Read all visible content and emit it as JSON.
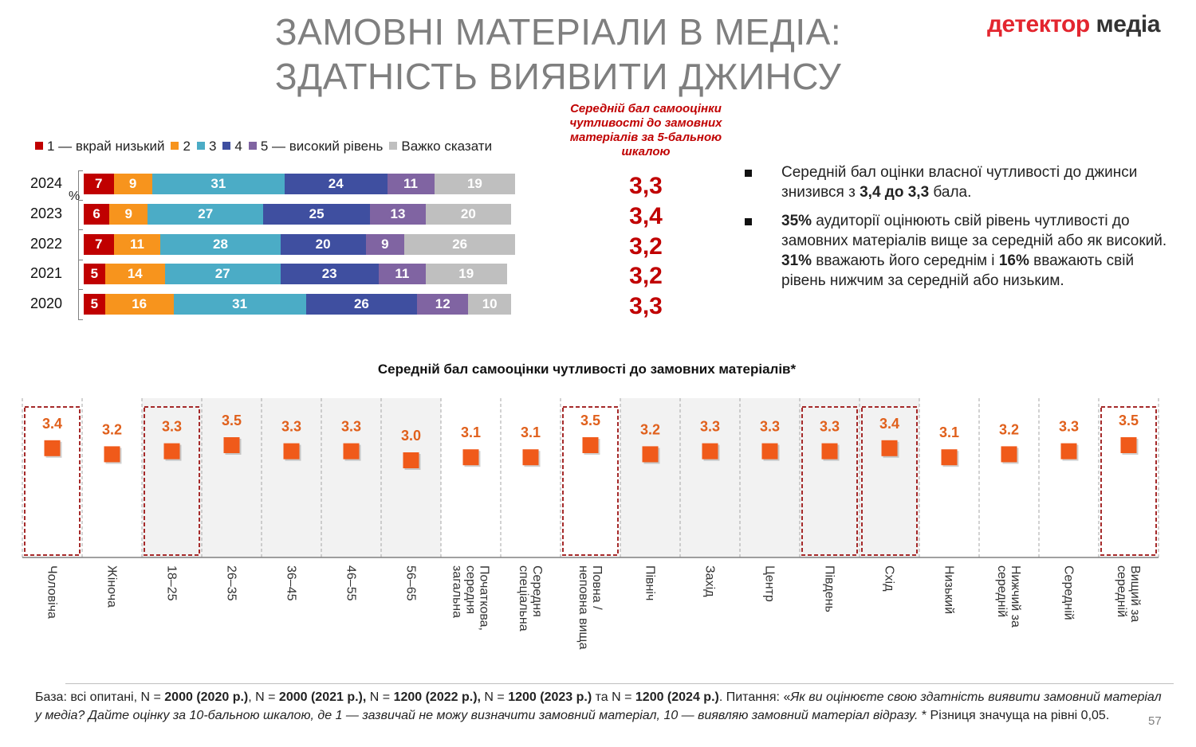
{
  "title": {
    "line1": "ЗАМОВНІ МАТЕРІАЛИ В МЕДІА:",
    "line2": "ЗДАТНІСТЬ ВИЯВИТИ ДЖИНСУ"
  },
  "logo": {
    "part1": "детектор",
    "part2": " медіа"
  },
  "legend": [
    {
      "label": "1 — вкрай низький",
      "color": "#c00000"
    },
    {
      "label": "2",
      "color": "#f7941d"
    },
    {
      "label": "3",
      "color": "#4bacc6"
    },
    {
      "label": "4",
      "color": "#3f4fa0"
    },
    {
      "label": "5 — високий рівень",
      "color": "#8064a2"
    },
    {
      "label": "Важко сказати",
      "color": "#bfbfbf"
    }
  ],
  "avg_header": "Середній бал самооцінки чутливості до замовних матеріалів за 5-бальною шкалою",
  "percent_unit": "%",
  "chart_data": [
    {
      "type": "bar",
      "orientation": "horizontal-stacked-100",
      "categories": [
        "2024",
        "2023",
        "2022",
        "2021",
        "2020"
      ],
      "series": [
        {
          "name": "1 — вкрай низький",
          "values": [
            7,
            6,
            7,
            5,
            5
          ],
          "color": "#c00000"
        },
        {
          "name": "2",
          "values": [
            9,
            9,
            11,
            14,
            16
          ],
          "color": "#f7941d"
        },
        {
          "name": "3",
          "values": [
            31,
            27,
            28,
            27,
            31
          ],
          "color": "#4bacc6"
        },
        {
          "name": "4",
          "values": [
            24,
            25,
            20,
            23,
            26
          ],
          "color": "#3f4fa0"
        },
        {
          "name": "5 — високий рівень",
          "values": [
            11,
            13,
            9,
            11,
            12
          ],
          "color": "#8064a2"
        },
        {
          "name": "Важко сказати",
          "values": [
            19,
            20,
            26,
            19,
            10
          ],
          "color": "#bfbfbf"
        }
      ],
      "ylabel": "%",
      "averages": [
        "3,3",
        "3,4",
        "3,2",
        "3,2",
        "3,3"
      ],
      "legend_position": "top"
    },
    {
      "type": "scatter",
      "title": "Середній бал самооцінки чутливості до замовних матеріалів*",
      "categories": [
        "Чоловіча",
        "Жіноча",
        "18–25",
        "26–35",
        "36–45",
        "46–55",
        "56–65",
        "Початкова, середня загальна",
        "Середня спеціальна",
        "Повна / неповна вища",
        "Північ",
        "Захід",
        "Центр",
        "Південь",
        "Схід",
        "Низький",
        "Нижчий за середній",
        "Середній",
        "Вищий за середній"
      ],
      "tick_labels": [
        [
          "Чоловіча"
        ],
        [
          "Жіноча"
        ],
        [
          "18–25"
        ],
        [
          "26–35"
        ],
        [
          "36–45"
        ],
        [
          "46–55"
        ],
        [
          "56–65"
        ],
        [
          "Початкова,",
          "середня",
          "загальна"
        ],
        [
          "Середня",
          "спеціальна"
        ],
        [
          "Повна /",
          "неповна вища"
        ],
        [
          "Північ"
        ],
        [
          "Захід"
        ],
        [
          "Центр"
        ],
        [
          "Південь"
        ],
        [
          "Схід"
        ],
        [
          "Низький"
        ],
        [
          "Нижчий за",
          "середній"
        ],
        [
          "Середній"
        ],
        [
          "Вищий за",
          "середній"
        ]
      ],
      "values": [
        3.4,
        3.2,
        3.3,
        3.5,
        3.3,
        3.3,
        3.0,
        3.1,
        3.1,
        3.5,
        3.2,
        3.3,
        3.3,
        3.3,
        3.4,
        3.1,
        3.2,
        3.3,
        3.5
      ],
      "value_labels": [
        "3.4",
        "3.2",
        "3.3",
        "3.5",
        "3.3",
        "3.3",
        "3.0",
        "3.1",
        "3.1",
        "3.5",
        "3.2",
        "3.3",
        "3.3",
        "3.3",
        "3.4",
        "3.1",
        "3.2",
        "3.3",
        "3.5"
      ],
      "significant": [
        true,
        false,
        true,
        false,
        false,
        false,
        false,
        false,
        false,
        true,
        false,
        false,
        false,
        true,
        true,
        false,
        false,
        false,
        true
      ],
      "shaded": [
        false,
        false,
        true,
        true,
        true,
        true,
        true,
        false,
        false,
        false,
        true,
        true,
        true,
        true,
        true,
        false,
        false,
        false,
        false
      ],
      "marker_color": "#f05a1a",
      "label_color": "#e0601c",
      "highlight_color": "#a52a2a"
    }
  ],
  "bullets": [
    {
      "parts": [
        {
          "t": "Середній бал оцінки власної чутливості до джинси знизився з ",
          "b": false
        },
        {
          "t": "3,4 до 3,3",
          "b": true
        },
        {
          "t": " бала.",
          "b": false
        }
      ]
    },
    {
      "parts": [
        {
          "t": "35%",
          "b": true
        },
        {
          "t": " аудиторії оцінюють свій рівень чутливості до замовних матеріалів вище за середній або як високий. ",
          "b": false
        },
        {
          "t": "31%",
          "b": true
        },
        {
          "t": " вважають його середнім і ",
          "b": false
        },
        {
          "t": "16%",
          "b": true
        },
        {
          "t": " вважають свій рівень нижчим за середній або низьким.",
          "b": false
        }
      ]
    }
  ],
  "footer": [
    {
      "t": "База: всі опитані, N = ",
      "s": "n"
    },
    {
      "t": "2000 (2020 р.)",
      "s": "b"
    },
    {
      "t": ", N = ",
      "s": "n"
    },
    {
      "t": "2000 (2021 р.),",
      "s": "b"
    },
    {
      "t": " N = ",
      "s": "n"
    },
    {
      "t": "1200 (2022 р.),",
      "s": "b"
    },
    {
      "t": " N = ",
      "s": "n"
    },
    {
      "t": "1200 (2023 р.)",
      "s": "b"
    },
    {
      "t": " та N = ",
      "s": "n"
    },
    {
      "t": "1200 (2024 р.)",
      "s": "b"
    },
    {
      "t": ". Питання: «",
      "s": "n"
    },
    {
      "t": "Як ви оцінюєте свою здатність виявити замовний матеріал у медіа? Дайте оцінку за 10-бальною шкалою, де 1 — зазвичай не можу визначити замовний матеріал, 10 — виявляю замовний матеріал відразу.",
      "s": "i"
    },
    {
      "t": " * Різниця значуща на рівні 0,05.",
      "s": "n"
    }
  ],
  "page_number": "57"
}
